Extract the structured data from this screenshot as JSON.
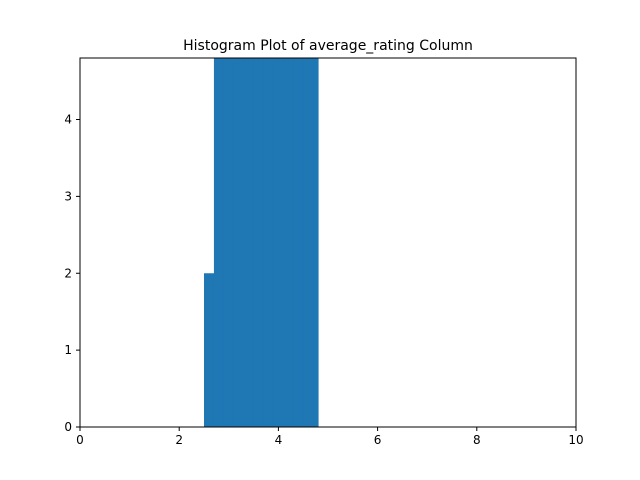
{
  "chart_data": {
    "type": "bar",
    "title": "Histogram Plot of average_rating Column",
    "xlabel": "",
    "ylabel": "",
    "xlim": [
      0,
      10
    ],
    "ylim": [
      0,
      4.8
    ],
    "grid": false,
    "bar_color": "#1f77b4",
    "bins": [
      {
        "x0": 2.5,
        "x1": 2.7,
        "count": 2
      },
      {
        "x0": 2.7,
        "x1": 2.9,
        "count": 4.8
      },
      {
        "x0": 2.9,
        "x1": 3.1,
        "count": 4.8
      },
      {
        "x0": 3.1,
        "x1": 3.3,
        "count": 4.8
      },
      {
        "x0": 3.3,
        "x1": 3.5,
        "count": 4.8
      },
      {
        "x0": 3.5,
        "x1": 3.7,
        "count": 4.8
      },
      {
        "x0": 3.7,
        "x1": 3.9,
        "count": 4.8
      },
      {
        "x0": 3.9,
        "x1": 4.1,
        "count": 4.8
      },
      {
        "x0": 4.1,
        "x1": 4.3,
        "count": 4.8
      },
      {
        "x0": 4.3,
        "x1": 4.5,
        "count": 4.8
      },
      {
        "x0": 4.5,
        "x1": 4.7,
        "count": 4.8
      },
      {
        "x0": 4.7,
        "x1": 4.8,
        "count": 4.8
      }
    ],
    "x_ticks": [
      "0",
      "2",
      "4",
      "6",
      "8",
      "10"
    ],
    "y_ticks": [
      "0",
      "1",
      "2",
      "3",
      "4"
    ]
  }
}
